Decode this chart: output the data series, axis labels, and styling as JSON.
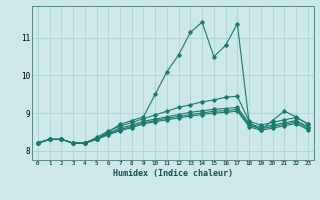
{
  "title": "",
  "xlabel": "Humidex (Indice chaleur)",
  "ylabel": "",
  "bg_color": "#cce8e8",
  "line_color": "#1a7a6e",
  "grid_color": "#aacece",
  "xlim": [
    -0.5,
    23.5
  ],
  "ylim": [
    7.75,
    11.85
  ],
  "yticks": [
    8,
    9,
    10,
    11
  ],
  "xticks": [
    0,
    1,
    2,
    3,
    4,
    5,
    6,
    7,
    8,
    9,
    10,
    11,
    12,
    13,
    14,
    15,
    16,
    17,
    18,
    19,
    20,
    21,
    22,
    23
  ],
  "lines": [
    [
      8.2,
      8.3,
      8.3,
      8.2,
      8.2,
      8.3,
      8.5,
      8.7,
      8.8,
      8.9,
      9.5,
      10.1,
      10.55,
      11.15,
      11.42,
      10.5,
      10.8,
      11.38,
      8.75,
      8.55,
      8.8,
      9.05,
      8.9,
      8.7
    ],
    [
      8.2,
      8.3,
      8.3,
      8.2,
      8.2,
      8.35,
      8.52,
      8.65,
      8.75,
      8.85,
      8.95,
      9.05,
      9.15,
      9.22,
      9.3,
      9.35,
      9.42,
      9.45,
      8.78,
      8.68,
      8.75,
      8.82,
      8.88,
      8.72
    ],
    [
      8.2,
      8.3,
      8.3,
      8.2,
      8.2,
      8.3,
      8.46,
      8.6,
      8.68,
      8.78,
      8.84,
      8.9,
      8.96,
      9.02,
      9.06,
      9.1,
      9.12,
      9.15,
      8.72,
      8.62,
      8.68,
      8.74,
      8.8,
      8.64
    ],
    [
      8.2,
      8.3,
      8.3,
      8.2,
      8.2,
      8.3,
      8.44,
      8.56,
      8.64,
      8.74,
      8.8,
      8.86,
      8.91,
      8.96,
      9.0,
      9.05,
      9.06,
      9.1,
      8.68,
      8.58,
      8.64,
      8.7,
      8.76,
      8.6
    ],
    [
      8.2,
      8.3,
      8.3,
      8.2,
      8.2,
      8.3,
      8.42,
      8.53,
      8.61,
      8.71,
      8.77,
      8.82,
      8.87,
      8.92,
      8.96,
      9.0,
      9.02,
      9.05,
      8.64,
      8.54,
      8.6,
      8.66,
      8.72,
      8.56
    ]
  ]
}
